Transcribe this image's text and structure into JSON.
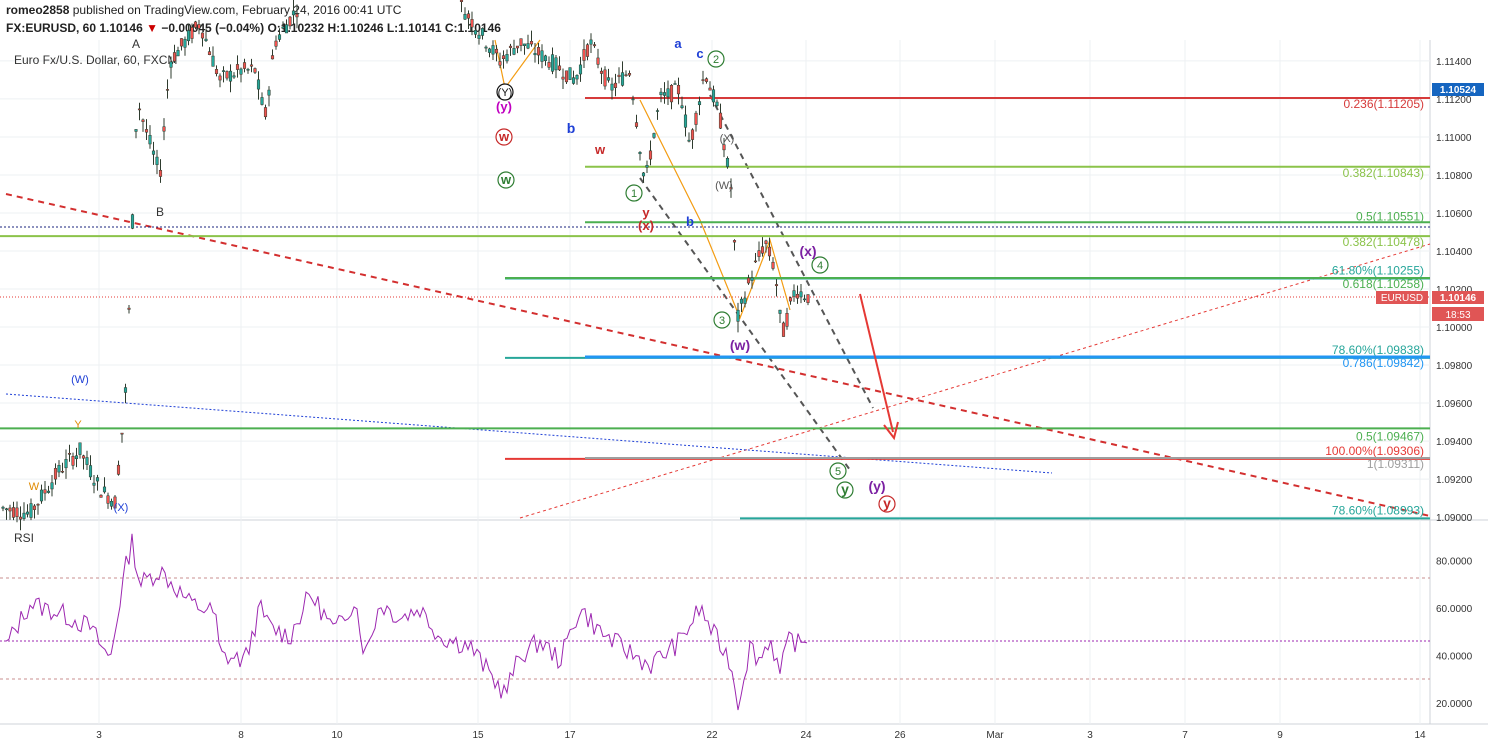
{
  "header": {
    "user": "romeo2858",
    "published": "published on TradingView.com, February 24, 2016 00:41 UTC",
    "symbol": "FX:EURUSD, 60",
    "last": "1.10146",
    "change": "−0.00045 (−0.04%)",
    "ohlc": "O:1.10232 H:1.10246 L:1.10141 C:1.10146"
  },
  "chart_data": [
    {
      "type": "line",
      "title": "Euro Fx/U.S. Dollar, 60, FXCM",
      "series_name": "EURUSD",
      "price_label": "1.10146",
      "countdown": "18:53",
      "high_label": "1.10524",
      "y_ticks": [
        "1.11400",
        "1.11200",
        "1.11000",
        "1.10800",
        "1.10600",
        "1.10400",
        "1.10200",
        "1.10000",
        "1.09800",
        "1.09600",
        "1.09400",
        "1.09200",
        "1.09000"
      ],
      "ylim": [
        1.0899,
        1.1151
      ],
      "x_ticks": [
        "3",
        "8",
        "10",
        "15",
        "17",
        "22",
        "24",
        "26",
        "Mar",
        "3",
        "7",
        "9",
        "14"
      ],
      "levels": [
        {
          "label": "0.236(1.11205)",
          "value": 1.11205,
          "color": "#d63a3a"
        },
        {
          "label": "0.382(1.10843)",
          "value": 1.10843,
          "color": "#8bc34a"
        },
        {
          "label": "0.5(1.10551)",
          "value": 1.10551,
          "color": "#4caf50"
        },
        {
          "label": "0.382(1.10478)",
          "value": 1.10478,
          "color": "#8bc34a"
        },
        {
          "label": "61.80%(1.10255)",
          "value": 1.10255,
          "color": "#26a69a"
        },
        {
          "label": "0.618(1.10258)",
          "value": 1.10258,
          "color": "#4caf50"
        },
        {
          "label": "78.60%(1.09838)",
          "value": 1.09838,
          "color": "#26a69a"
        },
        {
          "label": "0.786(1.09842)",
          "value": 1.09842,
          "color": "#2196f3"
        },
        {
          "label": "0.5(1.09467)",
          "value": 1.09467,
          "color": "#4caf50"
        },
        {
          "label": "100.00%(1.09306)",
          "value": 1.09306,
          "color": "#e53935"
        },
        {
          "label": "1(1.09311)",
          "value": 1.09311,
          "color": "#9e9e9e"
        },
        {
          "label": "78.60%(1.08993)",
          "value": 1.08993,
          "color": "#26a69a"
        }
      ],
      "wave_labels": [
        "A",
        "B",
        "W",
        "Y",
        "(W)",
        "(X)",
        "(Y)",
        "(y)",
        "w",
        "w",
        "b",
        "w",
        "y",
        "(x)",
        "1",
        "2",
        "3",
        "4",
        "5",
        "a",
        "c",
        "b",
        "(X)",
        "(W)",
        "(x)",
        "(w)",
        "(y)",
        "y",
        "y"
      ]
    },
    {
      "type": "line",
      "title": "RSI",
      "y_ticks": [
        "80.0000",
        "60.0000",
        "40.0000",
        "20.0000"
      ],
      "ylim": [
        15,
        95
      ],
      "bands": [
        70,
        30
      ],
      "midline": 45,
      "last_value": 48
    }
  ],
  "colors": {
    "up": "#26a69a",
    "down": "#ef5350",
    "candle": "#2e3b2e",
    "rsi": "#9c27b0",
    "price_label_bg": "#e05555",
    "high_label_bg": "#1565c0"
  }
}
